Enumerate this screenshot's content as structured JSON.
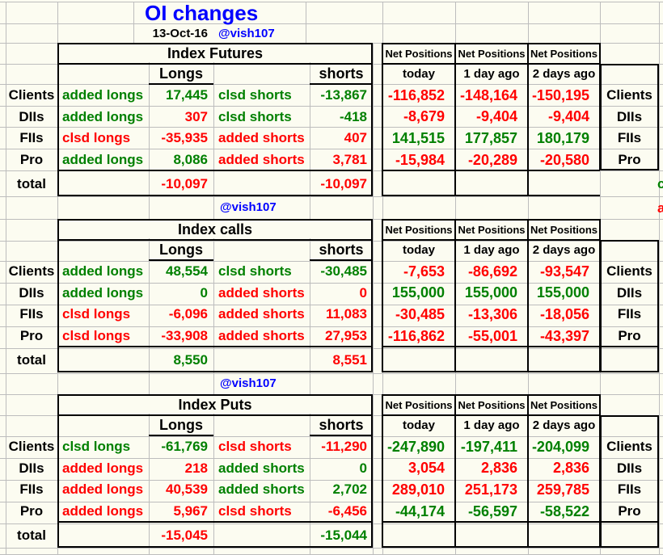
{
  "app": {
    "title": "OI changes",
    "date": "13-Oct-16",
    "handle": "@vish107"
  },
  "palette": {
    "green": "#008000",
    "red": "#ff0000",
    "blue": "#0000ff",
    "black": "#000000",
    "grid": "#bdbdbd",
    "bg": "#fcfcf1"
  },
  "labels": {
    "net_positions": "Net Positions",
    "longs": "Longs",
    "shorts": "shorts",
    "total": "total",
    "today": "today",
    "one_day": "1 day ago",
    "two_days": "2 days ago"
  },
  "sections": [
    {
      "title": "Index Futures",
      "handle_below": "@vish107",
      "rows": [
        {
          "name": "Clients",
          "l_label": "added longs",
          "l_label_color": "green",
          "l_value": "17,445",
          "l_value_color": "green",
          "s_label": "clsd shorts",
          "s_label_color": "green",
          "s_value": "-13,867",
          "s_value_color": "green",
          "net": [
            "-116,852",
            "-148,164",
            "-150,195"
          ],
          "net_colors": [
            "red",
            "red",
            "red"
          ]
        },
        {
          "name": "DIIs",
          "l_label": "added longs",
          "l_label_color": "green",
          "l_value": "307",
          "l_value_color": "red",
          "s_label": "clsd shorts",
          "s_label_color": "green",
          "s_value": "-418",
          "s_value_color": "green",
          "net": [
            "-8,679",
            "-9,404",
            "-9,404"
          ],
          "net_colors": [
            "red",
            "red",
            "red"
          ]
        },
        {
          "name": "FIIs",
          "l_label": "clsd longs",
          "l_label_color": "red",
          "l_value": "-35,935",
          "l_value_color": "red",
          "s_label": "added shorts",
          "s_label_color": "red",
          "s_value": "407",
          "s_value_color": "red",
          "net": [
            "141,515",
            "177,857",
            "180,179"
          ],
          "net_colors": [
            "green",
            "green",
            "green"
          ]
        },
        {
          "name": "Pro",
          "l_label": "added longs",
          "l_label_color": "green",
          "l_value": "8,086",
          "l_value_color": "green",
          "s_label": "added shorts",
          "s_label_color": "red",
          "s_value": "3,781",
          "s_value_color": "red",
          "net": [
            "-15,984",
            "-20,289",
            "-20,580"
          ],
          "net_colors": [
            "red",
            "red",
            "red"
          ]
        }
      ],
      "total": {
        "l_value": "-10,097",
        "l_color": "red",
        "s_value": "-10,097",
        "s_color": "red"
      },
      "overflow": [
        {
          "text": "c",
          "color": "green"
        },
        {
          "text": "a",
          "color": "red"
        }
      ]
    },
    {
      "title": "Index calls",
      "handle_below": "@vish107",
      "rows": [
        {
          "name": "Clients",
          "l_label": "added longs",
          "l_label_color": "green",
          "l_value": "48,554",
          "l_value_color": "green",
          "s_label": "clsd shorts",
          "s_label_color": "green",
          "s_value": "-30,485",
          "s_value_color": "green",
          "net": [
            "-7,653",
            "-86,692",
            "-93,547"
          ],
          "net_colors": [
            "red",
            "red",
            "red"
          ]
        },
        {
          "name": "DIIs",
          "l_label": "added longs",
          "l_label_color": "green",
          "l_value": "0",
          "l_value_color": "green",
          "s_label": "added shorts",
          "s_label_color": "red",
          "s_value": "0",
          "s_value_color": "red",
          "net": [
            "155,000",
            "155,000",
            "155,000"
          ],
          "net_colors": [
            "green",
            "green",
            "green"
          ]
        },
        {
          "name": "FIIs",
          "l_label": "clsd longs",
          "l_label_color": "red",
          "l_value": "-6,096",
          "l_value_color": "red",
          "s_label": "added shorts",
          "s_label_color": "red",
          "s_value": "11,083",
          "s_value_color": "red",
          "net": [
            "-30,485",
            "-13,306",
            "-18,056"
          ],
          "net_colors": [
            "red",
            "red",
            "red"
          ]
        },
        {
          "name": "Pro",
          "l_label": "clsd longs",
          "l_label_color": "red",
          "l_value": "-33,908",
          "l_value_color": "red",
          "s_label": "added shorts",
          "s_label_color": "red",
          "s_value": "27,953",
          "s_value_color": "red",
          "net": [
            "-116,862",
            "-55,001",
            "-43,397"
          ],
          "net_colors": [
            "red",
            "red",
            "red"
          ]
        }
      ],
      "total": {
        "l_value": "8,550",
        "l_color": "green",
        "s_value": "8,551",
        "s_color": "red"
      }
    },
    {
      "title": "Index Puts",
      "rows": [
        {
          "name": "Clients",
          "l_label": "clsd longs",
          "l_label_color": "green",
          "l_value": "-61,769",
          "l_value_color": "green",
          "s_label": "clsd shorts",
          "s_label_color": "red",
          "s_value": "-11,290",
          "s_value_color": "red",
          "net": [
            "-247,890",
            "-197,411",
            "-204,099"
          ],
          "net_colors": [
            "green",
            "green",
            "green"
          ]
        },
        {
          "name": "DIIs",
          "l_label": "added longs",
          "l_label_color": "red",
          "l_value": "218",
          "l_value_color": "red",
          "s_label": "added shorts",
          "s_label_color": "green",
          "s_value": "0",
          "s_value_color": "green",
          "net": [
            "3,054",
            "2,836",
            "2,836"
          ],
          "net_colors": [
            "red",
            "red",
            "red"
          ]
        },
        {
          "name": "FIIs",
          "l_label": "added longs",
          "l_label_color": "red",
          "l_value": "40,539",
          "l_value_color": "red",
          "s_label": "added shorts",
          "s_label_color": "green",
          "s_value": "2,702",
          "s_value_color": "green",
          "net": [
            "289,010",
            "251,173",
            "259,785"
          ],
          "net_colors": [
            "red",
            "red",
            "red"
          ]
        },
        {
          "name": "Pro",
          "l_label": "added longs",
          "l_label_color": "red",
          "l_value": "5,967",
          "l_value_color": "red",
          "s_label": "clsd shorts",
          "s_label_color": "red",
          "s_value": "-6,456",
          "s_value_color": "red",
          "net": [
            "-44,174",
            "-56,597",
            "-58,522"
          ],
          "net_colors": [
            "green",
            "green",
            "green"
          ]
        }
      ],
      "total": {
        "l_value": "-15,045",
        "l_color": "red",
        "s_value": "-15,044",
        "s_color": "green"
      }
    }
  ]
}
